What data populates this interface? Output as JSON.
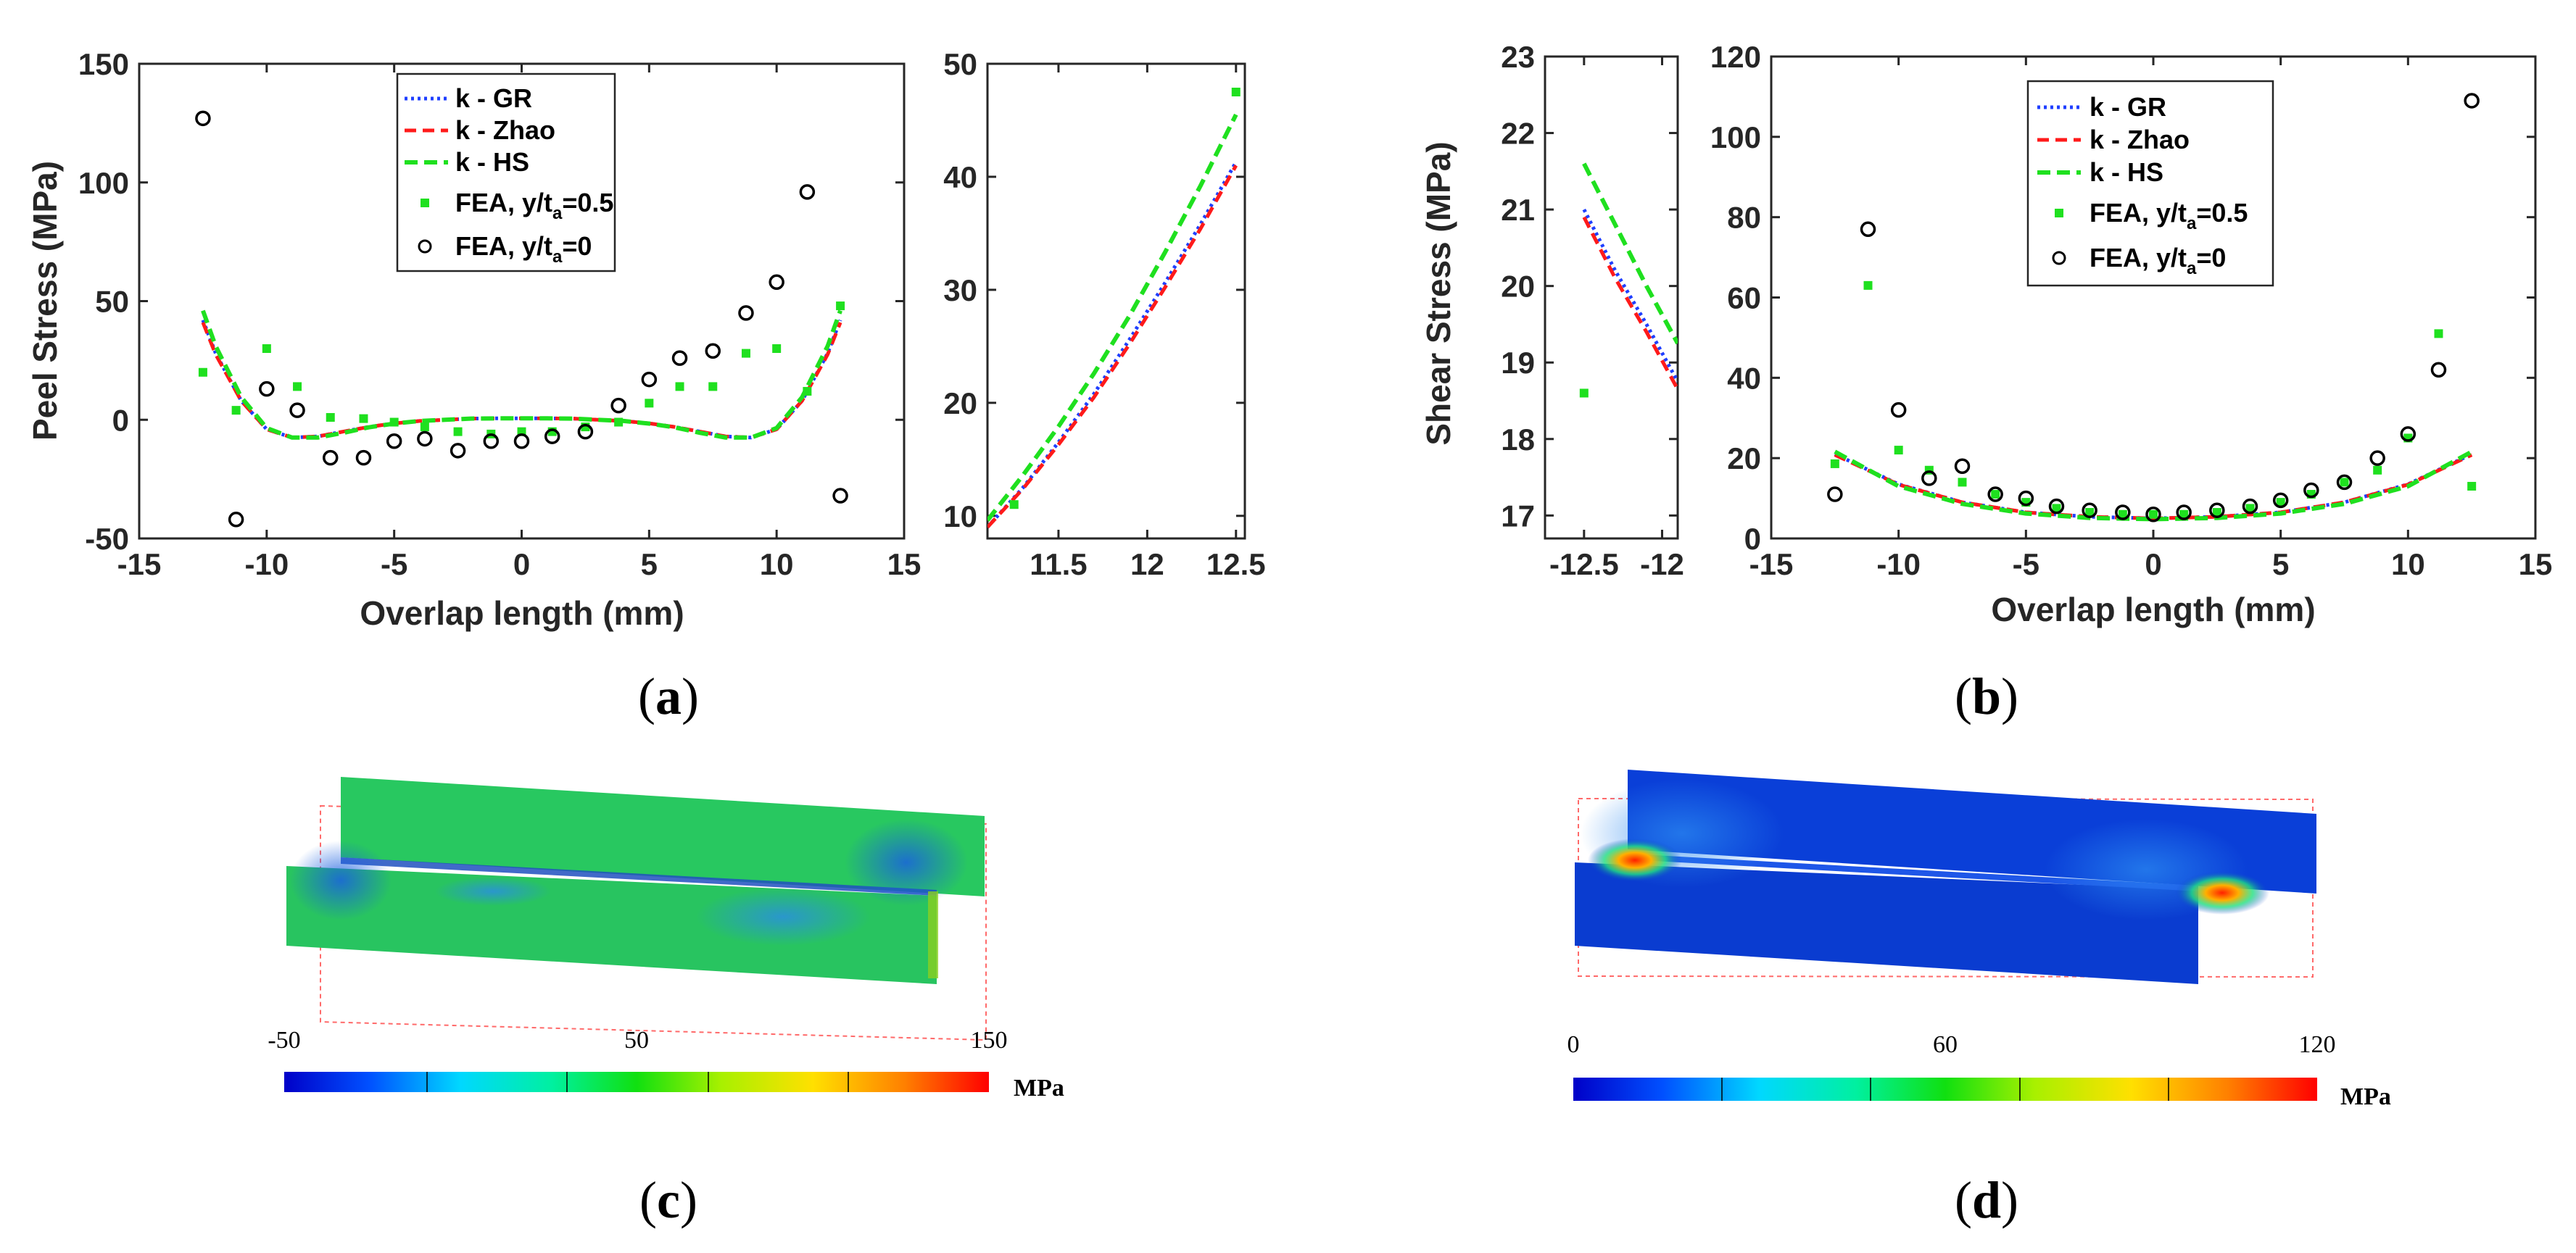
{
  "colors": {
    "gr": "#1f3fff",
    "zhao": "#ff1a1a",
    "hs": "#1fe01f",
    "fea_sq": "#1fe01f",
    "fea_circ": "#000000"
  },
  "legend": {
    "gr": "k - GR",
    "zhao": "k - Zhao",
    "hs": "k - HS",
    "fea_mid_main": "FEA, y/t",
    "fea_mid_sub": "a",
    "fea_mid_tail": "=0.5",
    "fea_edge_main": "FEA, y/t",
    "fea_edge_sub": "a",
    "fea_edge_tail": "=0"
  },
  "panels": {
    "a": "(a)",
    "b": "(b)",
    "c": "(c)",
    "d": "(d)",
    "a_letter": "a",
    "b_letter": "b",
    "c_letter": "c",
    "d_letter": "d"
  },
  "chart_data": [
    {
      "id": "peel_main",
      "type": "line",
      "title": "",
      "xlabel": "Overlap length (mm)",
      "ylabel": "Peel Stress (MPa)",
      "xlim": [
        -15,
        15
      ],
      "ylim": [
        -50,
        150
      ],
      "xticks": [
        "-15",
        "-10",
        "-5",
        "0",
        "5",
        "10",
        "15"
      ],
      "yticks": [
        "-50",
        "0",
        "50",
        "100",
        "150"
      ],
      "legend_position": "top-center",
      "series": [
        {
          "name": "k - GR",
          "x": [
            -12.5,
            -12,
            -11,
            -10,
            -9,
            -8,
            -7,
            -6,
            -5,
            -4,
            -3,
            -2,
            -1,
            0,
            1,
            2,
            3,
            4,
            5,
            6,
            7,
            8,
            9,
            10,
            11,
            12,
            12.5
          ],
          "y": [
            42,
            28,
            8,
            -4,
            -7.5,
            -7,
            -5,
            -3,
            -1.5,
            -0.5,
            0,
            0.5,
            0.6,
            0.6,
            0.6,
            0.5,
            0,
            -0.5,
            -1.5,
            -3,
            -5,
            -7,
            -7.5,
            -4,
            8,
            28,
            42
          ]
        },
        {
          "name": "k - Zhao",
          "x": [
            -12.5,
            -12,
            -11,
            -10,
            -9,
            -8,
            -7,
            -6,
            -5,
            -4,
            -3,
            -2,
            -1,
            0,
            1,
            2,
            3,
            4,
            5,
            6,
            7,
            8,
            9,
            10,
            11,
            12,
            12.5
          ],
          "y": [
            41,
            27.5,
            8,
            -4,
            -7.5,
            -7,
            -5,
            -3,
            -1.5,
            -0.5,
            0,
            0.5,
            0.6,
            0.6,
            0.6,
            0.5,
            0,
            -0.5,
            -1.5,
            -3,
            -5,
            -7,
            -7.5,
            -4,
            8,
            27.5,
            41
          ]
        },
        {
          "name": "k - HS",
          "x": [
            -12.5,
            -12,
            -11,
            -10,
            -9,
            -8,
            -7,
            -6,
            -5,
            -4,
            -3,
            -2,
            -1,
            0,
            1,
            2,
            3,
            4,
            5,
            6,
            7,
            8,
            9,
            10,
            11,
            12,
            12.5
          ],
          "y": [
            46,
            31,
            9.5,
            -3.5,
            -7.5,
            -7.5,
            -5.5,
            -3.2,
            -1.6,
            -0.5,
            0,
            0.5,
            0.6,
            0.6,
            0.6,
            0.5,
            0,
            -0.5,
            -1.6,
            -3.2,
            -5.5,
            -7.5,
            -7.5,
            -3.5,
            9.5,
            31,
            46
          ]
        },
        {
          "name": "FEA, y/ta=0.5",
          "x": [
            -12.5,
            -11.2,
            -10,
            -8.8,
            -7.5,
            -6.2,
            -5,
            -3.8,
            -2.5,
            -1.2,
            0,
            1.2,
            2.5,
            3.8,
            5,
            6.2,
            7.5,
            8.8,
            10,
            11.2,
            12.5
          ],
          "y": [
            20,
            4,
            30,
            14,
            1,
            0.5,
            -1,
            -3,
            -5,
            -6,
            -5,
            -5,
            -3,
            -1,
            7,
            14,
            14,
            28,
            30,
            12,
            48
          ]
        },
        {
          "name": "FEA, y/ta=0",
          "x": [
            -12.5,
            -11.2,
            -10,
            -8.8,
            -7.5,
            -6.2,
            -5,
            -3.8,
            -2.5,
            -1.2,
            0,
            1.2,
            2.5,
            3.8,
            5,
            6.2,
            7.5,
            8.8,
            10,
            11.2,
            12.5
          ],
          "y": [
            127,
            -42,
            13,
            4,
            -16,
            -16,
            -9,
            -8,
            -13,
            -9,
            -9,
            -7,
            -5,
            6,
            17,
            26,
            29,
            45,
            58,
            96,
            -32
          ]
        }
      ]
    },
    {
      "id": "peel_inset",
      "type": "line",
      "xlim": [
        11.1,
        12.55
      ],
      "ylim": [
        8,
        50
      ],
      "xticks": [
        "11.5",
        "12",
        "12.5"
      ],
      "yticks": [
        "10",
        "20",
        "30",
        "40",
        "50"
      ],
      "series": [
        {
          "name": "k - GR",
          "x": [
            11.1,
            11.3,
            11.5,
            11.7,
            11.9,
            12.1,
            12.3,
            12.5
          ],
          "y": [
            9,
            12.5,
            16.5,
            20.8,
            25.6,
            30.6,
            35.8,
            41.3
          ]
        },
        {
          "name": "k - Zhao",
          "x": [
            11.1,
            11.3,
            11.5,
            11.7,
            11.9,
            12.1,
            12.3,
            12.5
          ],
          "y": [
            9,
            12.4,
            16.3,
            20.5,
            25.2,
            30.2,
            35.4,
            41
          ]
        },
        {
          "name": "k - HS",
          "x": [
            11.1,
            11.3,
            11.5,
            11.7,
            11.9,
            12.1,
            12.3,
            12.5
          ],
          "y": [
            9.6,
            13.6,
            17.9,
            22.6,
            27.7,
            33.3,
            39.2,
            45.5
          ]
        },
        {
          "name": "FEA, y/ta=0.5",
          "x": [
            11.25,
            12.5
          ],
          "y": [
            11,
            47.5
          ]
        }
      ]
    },
    {
      "id": "shear_inset",
      "type": "line",
      "ylabel": "Shear Stress (MPa)",
      "xlim": [
        -12.75,
        -11.9
      ],
      "ylim": [
        16.7,
        23
      ],
      "xticks": [
        "-12.5",
        "-12"
      ],
      "yticks": [
        "17",
        "18",
        "19",
        "20",
        "21",
        "22",
        "23"
      ],
      "series": [
        {
          "name": "k - GR",
          "x": [
            -12.5,
            -12.3,
            -12.1,
            -11.9
          ],
          "y": [
            21,
            20.2,
            19.5,
            18.75
          ]
        },
        {
          "name": "k - Zhao",
          "x": [
            -12.5,
            -12.3,
            -12.1,
            -11.9
          ],
          "y": [
            20.9,
            20.1,
            19.4,
            18.65
          ]
        },
        {
          "name": "k - HS",
          "x": [
            -12.5,
            -12.3,
            -12.1,
            -11.9
          ],
          "y": [
            21.6,
            20.8,
            20.0,
            19.25
          ]
        },
        {
          "name": "FEA, y/ta=0.5",
          "x": [
            -12.5
          ],
          "y": [
            18.6
          ]
        }
      ]
    },
    {
      "id": "shear_main",
      "type": "line",
      "xlabel": "Overlap length (mm)",
      "xlim": [
        -15,
        15
      ],
      "ylim": [
        0,
        120
      ],
      "xticks": [
        "-15",
        "-10",
        "-5",
        "0",
        "5",
        "10",
        "15"
      ],
      "yticks": [
        "0",
        "20",
        "40",
        "60",
        "80",
        "100",
        "120"
      ],
      "legend_position": "top-center",
      "series": [
        {
          "name": "k - GR",
          "x": [
            -12.5,
            -10,
            -7.5,
            -5,
            -2.5,
            0,
            2.5,
            5,
            7.5,
            10,
            12.5
          ],
          "y": [
            21,
            13.5,
            9,
            6.5,
            5.4,
            5,
            5.4,
            6.5,
            9,
            13.5,
            21
          ]
        },
        {
          "name": "k - Zhao",
          "x": [
            -12.5,
            -10,
            -7.5,
            -5,
            -2.5,
            0,
            2.5,
            5,
            7.5,
            10,
            12.5
          ],
          "y": [
            20.8,
            13.4,
            9,
            6.5,
            5.4,
            5,
            5.4,
            6.5,
            9,
            13.4,
            20.8
          ]
        },
        {
          "name": "k - HS",
          "x": [
            -12.5,
            -10,
            -7.5,
            -5,
            -2.5,
            0,
            2.5,
            5,
            7.5,
            10,
            12.5
          ],
          "y": [
            21.6,
            13,
            8.6,
            6.2,
            5.1,
            4.8,
            5.1,
            6.2,
            8.6,
            13,
            21.6
          ]
        },
        {
          "name": "FEA, y/ta=0.5",
          "x": [
            -12.5,
            -11.2,
            -10,
            -8.8,
            -7.5,
            -6.2,
            -5,
            -3.8,
            -2.5,
            -1.2,
            0,
            1.2,
            2.5,
            3.8,
            5,
            6.2,
            7.5,
            8.8,
            10,
            11.2,
            12.5
          ],
          "y": [
            18.6,
            63,
            22,
            17,
            14,
            11,
            9,
            7.5,
            6.5,
            6,
            6,
            6,
            6.5,
            7.5,
            9,
            11,
            14,
            17,
            25,
            51,
            13
          ]
        },
        {
          "name": "FEA, y/ta=0",
          "x": [
            -12.5,
            -11.2,
            -10,
            -8.8,
            -7.5,
            -6.2,
            -5,
            -3.8,
            -2.5,
            -1.2,
            0,
            1.2,
            2.5,
            3.8,
            5,
            6.2,
            7.5,
            8.8,
            10,
            11.2,
            12.5
          ],
          "y": [
            11,
            77,
            32,
            15,
            18,
            11,
            10,
            8,
            7,
            6.5,
            6,
            6.5,
            7,
            8,
            9.5,
            12,
            14,
            20,
            26,
            42,
            109
          ]
        }
      ]
    }
  ],
  "contours": {
    "c": {
      "ticks": [
        "-50",
        "50",
        "150"
      ],
      "unit": "MPa"
    },
    "d": {
      "ticks": [
        "0",
        "60",
        "120"
      ],
      "unit": "MPa"
    }
  }
}
